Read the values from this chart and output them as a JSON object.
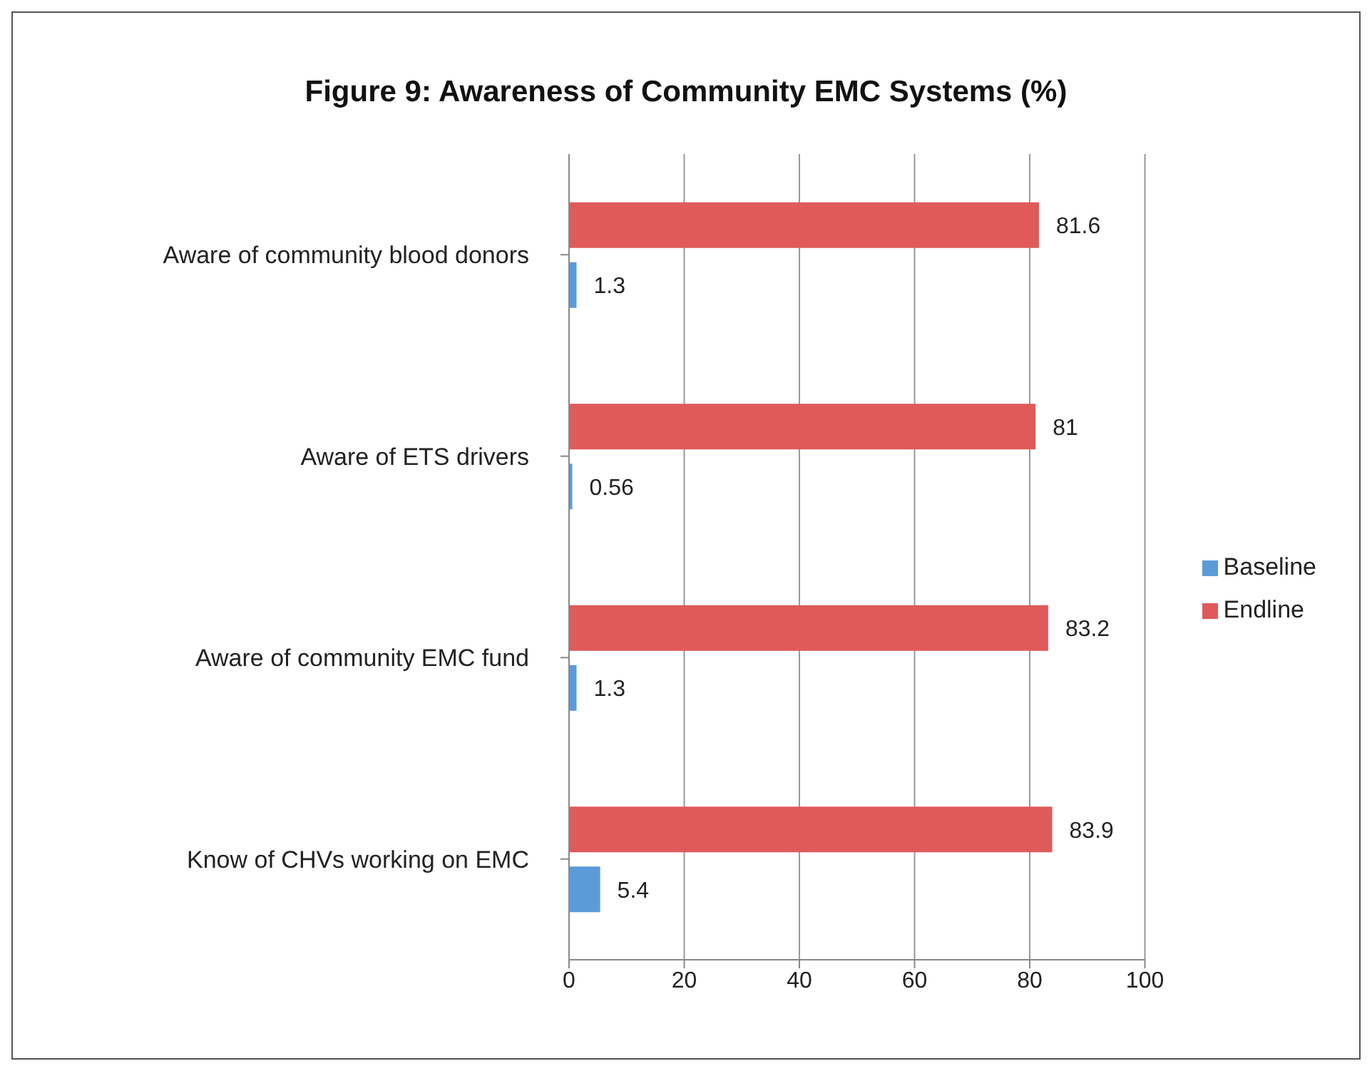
{
  "chart_data": {
    "type": "bar",
    "orientation": "horizontal",
    "title": "Figure 9: Awareness of Community EMC Systems (%)",
    "categories": [
      "Aware of community blood donors",
      "Aware of ETS drivers",
      "Aware of community EMC fund",
      "Know of CHVs working on EMC"
    ],
    "series": [
      {
        "name": "Endline",
        "color": "#e05a5a",
        "values": [
          81.6,
          81,
          83.2,
          83.9
        ]
      },
      {
        "name": "Baseline",
        "color": "#5b9bd8",
        "values": [
          1.3,
          0.56,
          1.3,
          5.4
        ]
      }
    ],
    "xlim": [
      0,
      100
    ],
    "xticks": [
      0,
      20,
      40,
      60,
      80,
      100
    ],
    "grid": "x",
    "legend": "right",
    "data_labels": true
  }
}
